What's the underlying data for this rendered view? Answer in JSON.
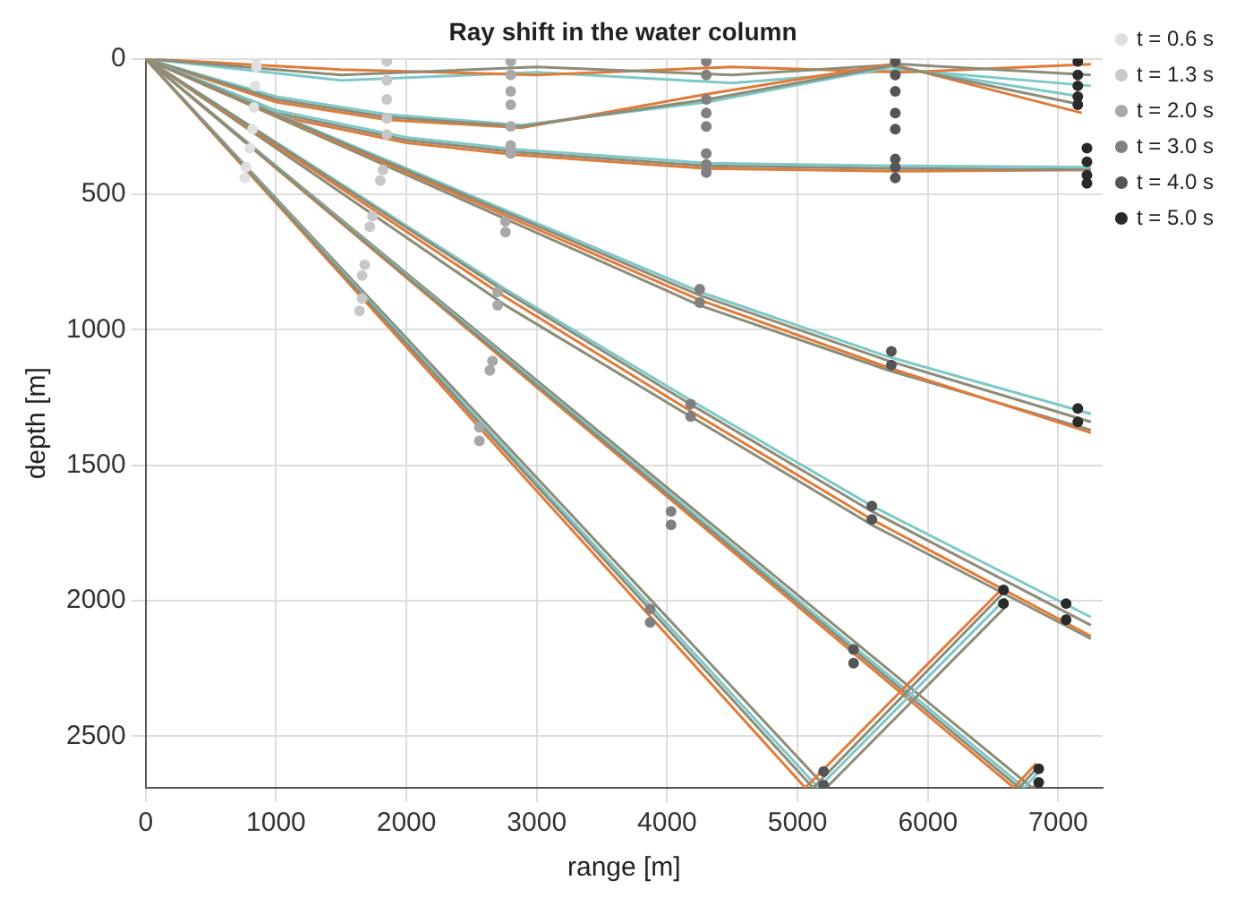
{
  "chart_data": {
    "type": "line",
    "title": "Ray shift in the water column",
    "xlabel": "range [m]",
    "ylabel": "depth [m]",
    "xlim": [
      0,
      7340
    ],
    "xticks": [
      0,
      1000,
      2000,
      3000,
      4000,
      5000,
      6000,
      7000
    ],
    "ylim": [
      2690,
      0
    ],
    "yticks": [
      0,
      500,
      1000,
      1500,
      2000,
      2500
    ],
    "grid": true,
    "legend": "top right",
    "line_style": "solid",
    "series": [
      {
        "color": "#8c8c78",
        "x": [
          0,
          5120,
          6580
        ],
        "values": [
          0,
          2690,
          1970
        ]
      },
      {
        "type": "line",
        "color": "#e07b39",
        "x": [
          0,
          5060,
          6560
        ],
        "values": [
          0,
          2690,
          1960
        ]
      },
      {
        "type": "line",
        "color": "#7ec8c8",
        "x": [
          0,
          5160,
          6600
        ],
        "values": [
          0,
          2690,
          1990
        ]
      },
      {
        "type": "line",
        "color": "#8c8c78",
        "x": [
          0,
          5220,
          6600
        ],
        "values": [
          0,
          2690,
          2020
        ]
      },
      {
        "type": "line",
        "color": "#8c8c78",
        "x": [
          0,
          6700,
          6850
        ],
        "values": [
          0,
          2690,
          2610
        ]
      },
      {
        "type": "line",
        "color": "#e07b39",
        "x": [
          0,
          6660,
          6830
        ],
        "values": [
          0,
          2690,
          2600
        ]
      },
      {
        "type": "line",
        "color": "#7ec8c8",
        "x": [
          0,
          6740,
          6870
        ],
        "values": [
          0,
          2690,
          2620
        ]
      },
      {
        "type": "line",
        "color": "#8c8c78",
        "x": [
          0,
          6800,
          6880
        ],
        "values": [
          0,
          2690,
          2660
        ]
      },
      {
        "type": "line",
        "color": "#8c8c78",
        "x": [
          0,
          2760,
          4180,
          5570,
          7250
        ],
        "values": [
          0,
          860,
          1275,
          1670,
          2090
        ]
      },
      {
        "type": "line",
        "color": "#e07b39",
        "x": [
          0,
          2760,
          4180,
          5570,
          7250
        ],
        "values": [
          0,
          880,
          1300,
          1700,
          2130
        ]
      },
      {
        "type": "line",
        "color": "#7ec8c8",
        "x": [
          0,
          2760,
          4180,
          5570,
          7250
        ],
        "values": [
          0,
          850,
          1260,
          1650,
          2060
        ]
      },
      {
        "type": "line",
        "color": "#8c8c78",
        "x": [
          0,
          2760,
          4180,
          5570,
          7250
        ],
        "values": [
          0,
          910,
          1320,
          1720,
          2140
        ]
      },
      {
        "type": "line",
        "color": "#8c8c78",
        "x": [
          0,
          4250,
          5700,
          7250
        ],
        "values": [
          0,
          873,
          1115,
          1340
        ]
      },
      {
        "type": "line",
        "color": "#e07b39",
        "x": [
          0,
          4250,
          5700,
          7250
        ],
        "values": [
          0,
          890,
          1140,
          1380
        ]
      },
      {
        "type": "line",
        "color": "#7ec8c8",
        "x": [
          0,
          4250,
          5700,
          7250
        ],
        "values": [
          0,
          860,
          1100,
          1310
        ]
      },
      {
        "type": "line",
        "color": "#8c8c78",
        "x": [
          0,
          4250,
          5700,
          7250
        ],
        "values": [
          0,
          910,
          1150,
          1370
        ]
      },
      {
        "type": "line",
        "color": "#8c8c78",
        "x": [
          0,
          1000,
          2000,
          2850,
          4300,
          5750,
          7250
        ],
        "values": [
          0,
          200,
          300,
          345,
          395,
          405,
          410
        ]
      },
      {
        "type": "line",
        "color": "#e07b39",
        "x": [
          0,
          1000,
          2000,
          2850,
          4300,
          5750,
          7250
        ],
        "values": [
          0,
          210,
          310,
          355,
          405,
          415,
          410
        ]
      },
      {
        "type": "line",
        "color": "#7ec8c8",
        "x": [
          0,
          1000,
          2000,
          2850,
          4300,
          5750,
          7250
        ],
        "values": [
          0,
          190,
          290,
          335,
          385,
          395,
          400
        ]
      },
      {
        "type": "line",
        "color": "#8c8c78",
        "x": [
          0,
          1000,
          1850,
          2880,
          4310,
          5720,
          7180
        ],
        "values": [
          0,
          150,
          215,
          250,
          150,
          25,
          170
        ]
      },
      {
        "type": "line",
        "color": "#e07b39",
        "x": [
          0,
          1000,
          1850,
          2880,
          4310,
          5720,
          7180
        ],
        "values": [
          0,
          160,
          225,
          255,
          130,
          20,
          200
        ]
      },
      {
        "type": "line",
        "color": "#7ec8c8",
        "x": [
          0,
          1000,
          1850,
          2880,
          4310,
          5720,
          7180
        ],
        "values": [
          0,
          140,
          205,
          245,
          160,
          30,
          140
        ]
      },
      {
        "type": "line",
        "color": "#8c8c78",
        "x": [
          0,
          1500,
          3000,
          4500,
          5800,
          7250
        ],
        "values": [
          0,
          60,
          30,
          60,
          20,
          60
        ]
      },
      {
        "type": "line",
        "color": "#e07b39",
        "x": [
          0,
          1500,
          3000,
          4500,
          5800,
          7250
        ],
        "values": [
          0,
          40,
          60,
          30,
          50,
          20
        ]
      },
      {
        "type": "line",
        "color": "#7ec8c8",
        "x": [
          0,
          1500,
          3000,
          4500,
          5800,
          7250
        ],
        "values": [
          0,
          80,
          50,
          90,
          40,
          100
        ]
      },
      {
        "type": "scatter",
        "name": "t = 0.6 s",
        "color": "#e0e0e0",
        "x": [
          850,
          850,
          840,
          830,
          820,
          800,
          770,
          760
        ],
        "values": [
          0,
          30,
          100,
          180,
          260,
          330,
          400,
          440
        ]
      },
      {
        "type": "scatter",
        "name": "t = 1.3 s",
        "color": "#c8c8c8",
        "x": [
          1850,
          1850,
          1850,
          1850,
          1850,
          1820,
          1800,
          1740,
          1720,
          1680,
          1660,
          1660,
          1640
        ],
        "values": [
          10,
          80,
          150,
          220,
          280,
          410,
          450,
          580,
          620,
          760,
          800,
          885,
          930
        ]
      },
      {
        "type": "scatter",
        "name": "t = 2.0 s",
        "color": "#a8a8a8",
        "x": [
          2800,
          2800,
          2800,
          2800,
          2800,
          2800,
          2800,
          2760,
          2760,
          2700,
          2700,
          2660,
          2640,
          2560,
          2560
        ],
        "values": [
          10,
          60,
          120,
          170,
          250,
          320,
          350,
          600,
          640,
          860,
          910,
          1115,
          1150,
          1360,
          1410
        ]
      },
      {
        "type": "scatter",
        "name": "t = 3.0 s",
        "color": "#808080",
        "x": [
          4300,
          4300,
          4300,
          4300,
          4300,
          4300,
          4300,
          4300,
          4250,
          4250,
          4180,
          4180,
          4030,
          4030,
          3870,
          3870
        ],
        "values": [
          10,
          60,
          150,
          200,
          250,
          350,
          390,
          420,
          850,
          900,
          1275,
          1320,
          1670,
          1720,
          2030,
          2080
        ]
      },
      {
        "type": "scatter",
        "name": "t = 4.0 s",
        "color": "#555555",
        "x": [
          5750,
          5750,
          5750,
          5750,
          5750,
          5750,
          5750,
          5750,
          5720,
          5720,
          5570,
          5570,
          5430,
          5430,
          5200,
          5200
        ],
        "values": [
          10,
          60,
          120,
          200,
          260,
          370,
          400,
          440,
          1080,
          1130,
          1650,
          1700,
          2180,
          2230,
          2630,
          2680
        ]
      },
      {
        "type": "scatter",
        "name": "t = 5.0 s",
        "color": "#2a2a2a",
        "x": [
          7150,
          7150,
          7150,
          7150,
          7150,
          7220,
          7220,
          7220,
          7220,
          7150,
          7150,
          7060,
          7060,
          6580,
          6580,
          6850,
          6850
        ],
        "values": [
          10,
          60,
          100,
          140,
          170,
          330,
          380,
          430,
          460,
          1290,
          1340,
          2010,
          2070,
          1960,
          2010,
          2620,
          2670
        ]
      }
    ]
  }
}
